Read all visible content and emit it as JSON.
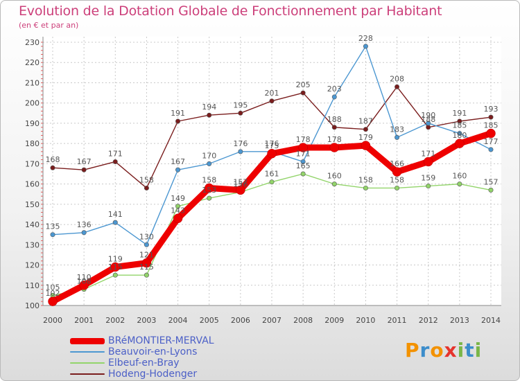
{
  "header": {
    "title": "Evolution de la Dotation Globale de Fonctionnement par Habitant",
    "subtitle": "(en € et par an)"
  },
  "brand": {
    "text": "Proxiti",
    "colors": [
      "#f39200",
      "#3c8dcb",
      "#f39200",
      "#e6342d",
      "#7ab648",
      "#3c8dcb",
      "#7ab648"
    ]
  },
  "chart_data": {
    "type": "line",
    "x": [
      "2000",
      "2001",
      "2002",
      "2003",
      "2004",
      "2005",
      "2006",
      "2007",
      "2008",
      "2009",
      "2010",
      "2011",
      "2012",
      "2013",
      "2014"
    ],
    "ylim": [
      100,
      230
    ],
    "yticks": [
      100,
      110,
      120,
      130,
      140,
      150,
      160,
      170,
      180,
      190,
      200,
      210,
      220,
      230
    ],
    "grid": true,
    "legend_position": "bottom-left",
    "series": [
      {
        "name": "BRéMONTIER-MERVAL",
        "color": "#ee0000",
        "values": [
          102,
          110,
          119,
          121,
          143,
          158,
          157,
          175,
          178,
          178,
          179,
          166,
          171,
          180,
          185
        ],
        "labels": [
          "102",
          "110",
          "119",
          "121",
          "143",
          "158",
          "157",
          "175",
          "178",
          "178",
          "179",
          "166",
          "171",
          "180",
          "185"
        ]
      },
      {
        "name": "Beauvoir-en-Lyons",
        "color": "#4c97d1",
        "values": [
          135,
          136,
          141,
          130,
          167,
          170,
          176,
          176,
          171,
          203,
          228,
          183,
          190,
          185,
          177
        ],
        "labels": [
          "135",
          "136",
          "141",
          "130",
          "167",
          "170",
          "176",
          "176",
          "171",
          "203",
          "228",
          "183",
          "190",
          "185",
          "177"
        ]
      },
      {
        "name": "Elbeuf-en-Bray",
        "color": "#92d46a",
        "values": [
          105,
          108,
          115,
          115,
          149,
          153,
          156,
          161,
          165,
          160,
          158,
          158,
          159,
          160,
          157
        ],
        "labels": [
          "105",
          "108",
          "115",
          "115",
          "149",
          "153",
          "156",
          "161",
          "165",
          "160",
          "158",
          "158",
          "159",
          "160",
          "157"
        ]
      },
      {
        "name": "Hodeng-Hodenger",
        "color": "#7a1d1d",
        "values": [
          168,
          167,
          171,
          158,
          191,
          194,
          195,
          201,
          205,
          188,
          187,
          208,
          188,
          191,
          193
        ],
        "labels": [
          "168",
          "167",
          "171",
          "158",
          "191",
          "194",
          "195",
          "201",
          "205",
          "188",
          "187",
          "208",
          "188",
          "191",
          "193"
        ]
      }
    ]
  }
}
